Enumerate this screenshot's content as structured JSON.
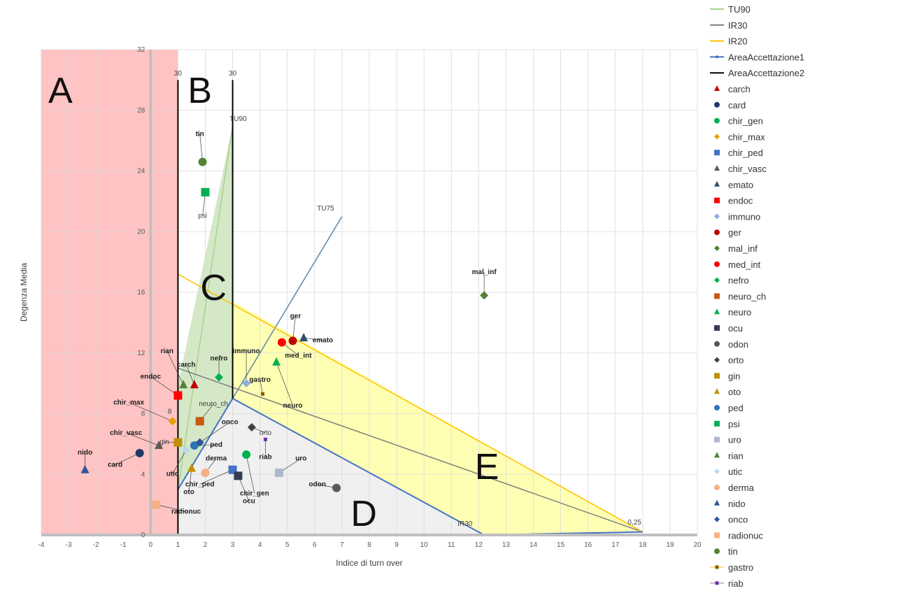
{
  "chart_data": {
    "type": "scatter",
    "title": "",
    "xlabel": "Indice di turn over",
    "ylabel": "Degenza Media",
    "xlim": [
      -4,
      20
    ],
    "ylim": [
      0,
      32
    ],
    "x_ticks": [
      -4,
      -3,
      -2,
      -1,
      0,
      1,
      2,
      3,
      4,
      5,
      6,
      7,
      8,
      9,
      10,
      11,
      12,
      13,
      14,
      15,
      16,
      17,
      18,
      19,
      20
    ],
    "y_ticks": [
      0,
      4,
      8,
      12,
      16,
      20,
      24,
      28,
      32
    ],
    "grid": true,
    "legend_position": "right",
    "zones": [
      {
        "label": "A",
        "color": "#ff9b9b",
        "polygon": [
          [
            -4,
            0
          ],
          [
            1,
            0
          ],
          [
            1,
            32
          ],
          [
            -4,
            32
          ]
        ]
      },
      {
        "label": "B",
        "color": "",
        "polygon": []
      },
      {
        "label": "C",
        "color": "#c5e0b4",
        "polygon": [
          [
            1,
            3
          ],
          [
            1,
            9.9
          ],
          [
            3,
            27
          ],
          [
            3,
            9
          ]
        ]
      },
      {
        "label": "D",
        "color": "#ebebeb",
        "polygon": [
          [
            1,
            3
          ],
          [
            3,
            9
          ],
          [
            12.2,
            0
          ],
          [
            1,
            0
          ]
        ]
      },
      {
        "label": "E",
        "color": "#ffff99",
        "polygon": [
          [
            3,
            9
          ],
          [
            3,
            15.4
          ],
          [
            18,
            0.2
          ],
          [
            12.2,
            0
          ]
        ]
      }
    ],
    "zone_letter_positions": [
      {
        "label": "A",
        "x": -3.3,
        "y": 28.5
      },
      {
        "label": "B",
        "x": 1.8,
        "y": 28.5
      },
      {
        "label": "C",
        "x": 2.3,
        "y": 15.5
      },
      {
        "label": "E",
        "x": 12.3,
        "y": 3.7
      },
      {
        "label": "D",
        "x": 7.8,
        "y": 0.6
      }
    ],
    "reference_lines": [
      {
        "name": "TU90",
        "color": "#a9d18e",
        "width": 1.5,
        "points": [
          [
            1,
            3
          ],
          [
            3,
            27
          ]
        ]
      },
      {
        "name": "TU75",
        "color": "#5b87ad",
        "width": 1.5,
        "points": [
          [
            1,
            3
          ],
          [
            7,
            21
          ]
        ]
      },
      {
        "name": "IR30",
        "color": "#7f7f7f",
        "width": 1.5,
        "points": [
          [
            1,
            11
          ],
          [
            18,
            0.2
          ]
        ]
      },
      {
        "name": "IR20",
        "color": "#ffc000",
        "width": 1.5,
        "points": [
          [
            1,
            17.2
          ],
          [
            18,
            0.2
          ]
        ]
      },
      {
        "name": "AreaAccettazione1",
        "color": "#4472c4",
        "width": 2,
        "points": [
          [
            1,
            3
          ],
          [
            3,
            9
          ],
          [
            12.2,
            0
          ],
          [
            18,
            0.2
          ]
        ]
      },
      {
        "name": "AreaAccettazione2",
        "color": "#000000",
        "width": 2,
        "points": [
          [
            1,
            0
          ],
          [
            1,
            30
          ]
        ]
      },
      {
        "name": "AreaAccettazione2b",
        "color": "#000000",
        "width": 2,
        "points": [
          [
            3,
            30
          ],
          [
            3,
            9
          ]
        ]
      }
    ],
    "line_labels": [
      {
        "text": "30",
        "x": 1,
        "y": 30.3
      },
      {
        "text": "30",
        "x": 3,
        "y": 30.3
      },
      {
        "text": "TU90",
        "x": 3.2,
        "y": 27.3
      },
      {
        "text": "TU75",
        "x": 6.4,
        "y": 21.4
      },
      {
        "text": "IR30",
        "x": 11.5,
        "y": 0.6
      },
      {
        "text": "0,25",
        "x": 17.7,
        "y": 0.7
      },
      {
        "text": "8",
        "x": 0.7,
        "y": 8
      }
    ],
    "series": [
      {
        "name": "TU90",
        "marker": "line",
        "color": "#a9d18e"
      },
      {
        "name": "IR30",
        "marker": "line",
        "color": "#7f7f7f"
      },
      {
        "name": "IR20",
        "marker": "line",
        "color": "#ffc000"
      },
      {
        "name": "AreaAccettazione1",
        "marker": "line-dot",
        "color": "#4472c4"
      },
      {
        "name": "AreaAccettazione2",
        "marker": "line",
        "color": "#000000"
      },
      {
        "name": "carch",
        "marker": "triangle",
        "color": "#c00000",
        "points": [
          [
            1.6,
            9.9
          ]
        ],
        "label_pos": [
          1.3,
          11.1
        ],
        "bold": true
      },
      {
        "name": "card",
        "marker": "circle",
        "color": "#1f3864",
        "points": [
          [
            -0.4,
            5.4
          ]
        ],
        "label_pos": [
          -1.3,
          4.5
        ],
        "bold": true
      },
      {
        "name": "chir_gen",
        "marker": "circle",
        "color": "#00b050",
        "points": [
          [
            3.5,
            5.3
          ]
        ],
        "label_pos": [
          3.8,
          2.6
        ],
        "bold": true
      },
      {
        "name": "chir_max",
        "marker": "diamond",
        "color": "#e6a100",
        "points": [
          [
            0.8,
            7.5
          ]
        ],
        "label_pos": [
          -0.8,
          8.6
        ],
        "bold": true
      },
      {
        "name": "chir_ped",
        "marker": "square",
        "color": "#4472c4",
        "points": [
          [
            3,
            4.3
          ]
        ],
        "label_pos": [
          1.8,
          3.2
        ],
        "bold": true
      },
      {
        "name": "chir_vasc",
        "marker": "triangle",
        "color": "#595959",
        "points": [
          [
            0.3,
            5.9
          ]
        ],
        "label_pos": [
          -0.9,
          6.6
        ],
        "bold": true
      },
      {
        "name": "emato",
        "marker": "triangle",
        "color": "#2f4f6f",
        "points": [
          [
            5.6,
            13
          ]
        ],
        "label_pos": [
          6.3,
          12.7
        ],
        "bold": true
      },
      {
        "name": "endoc",
        "marker": "square",
        "color": "#ff0000",
        "points": [
          [
            1,
            9.2
          ]
        ],
        "label_pos": [
          0,
          10.3
        ],
        "bold": true
      },
      {
        "name": "immuno",
        "marker": "diamond",
        "color": "#8faadc",
        "points": [
          [
            3.5,
            10
          ]
        ],
        "label_pos": [
          3.5,
          12
        ],
        "bold": true
      },
      {
        "name": "ger",
        "marker": "circle",
        "color": "#c00000",
        "points": [
          [
            5.2,
            12.8
          ]
        ],
        "label_pos": [
          5.3,
          14.3
        ],
        "bold": true
      },
      {
        "name": "mal_inf",
        "marker": "diamond",
        "color": "#548235",
        "points": [
          [
            12.2,
            15.8
          ]
        ],
        "label_pos": [
          12.2,
          17.2
        ],
        "bold": true
      },
      {
        "name": "med_int",
        "marker": "circle",
        "color": "#ff0000",
        "points": [
          [
            4.8,
            12.7
          ]
        ],
        "label_pos": [
          5.4,
          11.7
        ],
        "bold": true
      },
      {
        "name": "nefro",
        "marker": "diamond",
        "color": "#00b050",
        "points": [
          [
            2.5,
            10.4
          ]
        ],
        "label_pos": [
          2.5,
          11.5
        ],
        "bold": true
      },
      {
        "name": "neuro_ch",
        "marker": "square",
        "color": "#c55a11",
        "points": [
          [
            1.8,
            7.5
          ]
        ],
        "label_pos": [
          2.3,
          8.5
        ],
        "bold": false
      },
      {
        "name": "neuro",
        "marker": "triangle",
        "color": "#00b050",
        "points": [
          [
            4.6,
            11.4
          ]
        ],
        "label_pos": [
          5.2,
          8.4
        ],
        "bold": true
      },
      {
        "name": "ocu",
        "marker": "square",
        "color": "#333f50",
        "points": [
          [
            3.2,
            3.9
          ]
        ],
        "label_pos": [
          3.6,
          2.1
        ],
        "bold": true
      },
      {
        "name": "odon",
        "marker": "circle",
        "color": "#595959",
        "points": [
          [
            6.8,
            3.1
          ]
        ],
        "label_pos": [
          6.1,
          3.2
        ],
        "bold": true
      },
      {
        "name": "orto",
        "marker": "diamond",
        "color": "#404040",
        "points": [
          [
            3.7,
            7.1
          ]
        ],
        "label_pos": [
          4.2,
          6.6
        ],
        "bold": false
      },
      {
        "name": "gin",
        "marker": "square",
        "color": "#bf9000",
        "points": [
          [
            1,
            6.1
          ]
        ],
        "label_pos": [
          0.5,
          6
        ],
        "bold": false
      },
      {
        "name": "oto",
        "marker": "triangle",
        "color": "#bf9000",
        "points": [
          [
            1.5,
            4.4
          ]
        ],
        "label_pos": [
          1.4,
          2.7
        ],
        "bold": true
      },
      {
        "name": "ped",
        "marker": "circle",
        "color": "#2e75b6",
        "points": [
          [
            1.6,
            5.9
          ]
        ],
        "label_pos": [
          2.4,
          5.8
        ],
        "bold": true
      },
      {
        "name": "psi",
        "marker": "square",
        "color": "#00b050",
        "points": [
          [
            2,
            22.6
          ]
        ],
        "label_pos": [
          1.9,
          20.9
        ],
        "bold": false
      },
      {
        "name": "uro",
        "marker": "square",
        "color": "#adb9ca",
        "points": [
          [
            4.7,
            4.1
          ]
        ],
        "label_pos": [
          5.5,
          4.9
        ],
        "bold": true
      },
      {
        "name": "rian",
        "marker": "triangle",
        "color": "#548235",
        "points": [
          [
            1.2,
            9.9
          ]
        ],
        "label_pos": [
          0.6,
          12
        ],
        "bold": true
      },
      {
        "name": "utic",
        "marker": "diamond",
        "color": "#bdd7ee",
        "points": [
          [
            1.3,
            5.6
          ]
        ],
        "label_pos": [
          0.8,
          3.9
        ],
        "bold": true
      },
      {
        "name": "derma",
        "marker": "circle",
        "color": "#f4b183",
        "points": [
          [
            2,
            4.1
          ]
        ],
        "label_pos": [
          2.4,
          4.9
        ],
        "bold": true
      },
      {
        "name": "nido",
        "marker": "triangle",
        "color": "#2f5597",
        "points": [
          [
            -2.4,
            4.3
          ]
        ],
        "label_pos": [
          -2.4,
          5.3
        ],
        "bold": true
      },
      {
        "name": "onco",
        "marker": "diamond",
        "color": "#2f5597",
        "points": [
          [
            1.8,
            6.1
          ]
        ],
        "label_pos": [
          2.9,
          7.3
        ],
        "bold": true
      },
      {
        "name": "radionuc",
        "marker": "square",
        "color": "#f4b183",
        "points": [
          [
            0.2,
            2
          ]
        ],
        "label_pos": [
          1.3,
          1.4
        ],
        "bold": true
      },
      {
        "name": "tin",
        "marker": "circle",
        "color": "#548235",
        "points": [
          [
            1.9,
            24.6
          ]
        ],
        "label_pos": [
          1.8,
          26.3
        ],
        "bold": true
      },
      {
        "name": "gastro",
        "marker": "square-small",
        "color": "#7f6000",
        "points": [
          [
            4.1,
            9.3
          ]
        ],
        "label_pos": [
          4,
          10.1
        ],
        "bold": true
      },
      {
        "name": "riab",
        "marker": "square-small",
        "color": "#7030a0",
        "points": [
          [
            4.2,
            6.3
          ]
        ],
        "label_pos": [
          4.2,
          5
        ],
        "bold": true
      }
    ]
  }
}
